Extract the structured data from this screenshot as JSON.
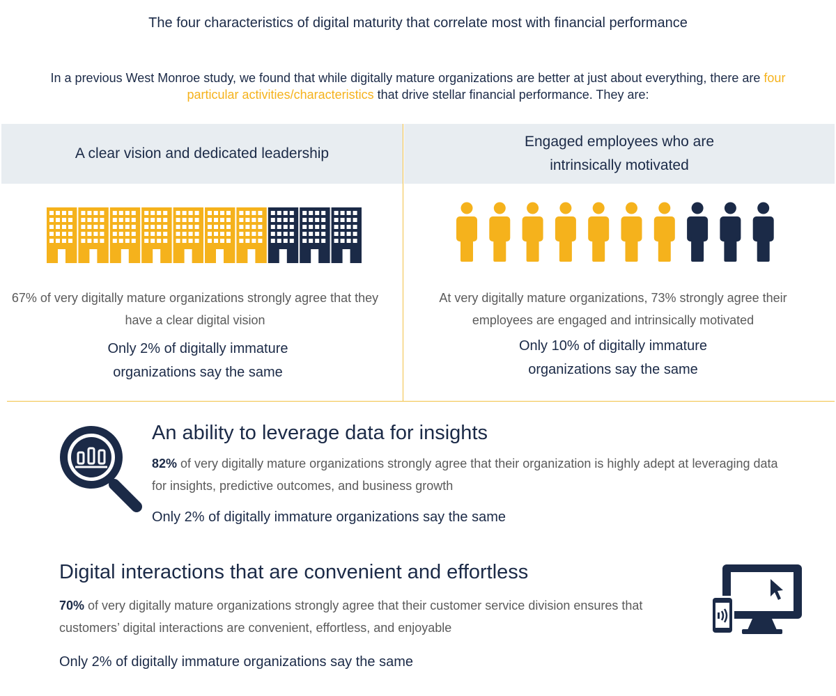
{
  "title": "The four characteristics of digital maturity that correlate most with financial performance",
  "intro": {
    "before": "In a previous West Monroe study, we found that while digitally mature organizations are better at just about everything, there are ",
    "highlight": "four particular activities/characteristics",
    "after": " that drive stellar financial performance. They are:"
  },
  "colors": {
    "accent": "#f5b21c",
    "navy": "#1b2a47",
    "band": "#e8edf1",
    "divider": "#f2c144"
  },
  "vision": {
    "heading": "A clear vision and dedicated leadership",
    "stat": "67% of very digitally mature organizations strongly agree that they have a clear digital vision",
    "note": "Only 2% of digitally immature organizations say the same",
    "icon": "building-icon",
    "highlighted_share": 0.67
  },
  "employees": {
    "heading": "Engaged employees who are intrinsically motivated",
    "stat": "At very digitally mature organizations, 73% strongly agree their employees are engaged and intrinsically motivated",
    "note": "Only 10% of digitally immature organizations say the same",
    "icon": "person-icon",
    "highlighted_count": 7,
    "total_count": 10
  },
  "data": {
    "heading": "An ability to leverage data for insights",
    "percent": "82%",
    "body": " of very digitally mature organizations strongly agree that their organization is highly adept at leveraging data for insights, predictive outcomes, and business growth",
    "note": "Only 2% of digitally immature organizations say the same",
    "icon": "magnifier-chart-icon"
  },
  "digital": {
    "heading": "Digital interactions that are convenient and effortless",
    "percent": "70%",
    "body": " of very digitally mature organizations strongly agree that their customer service division ensures that customers’ digital interactions are convenient, effortless, and enjoyable",
    "note": "Only 2% of digitally immature organizations say the same",
    "icon": "monitor-phone-icon"
  }
}
